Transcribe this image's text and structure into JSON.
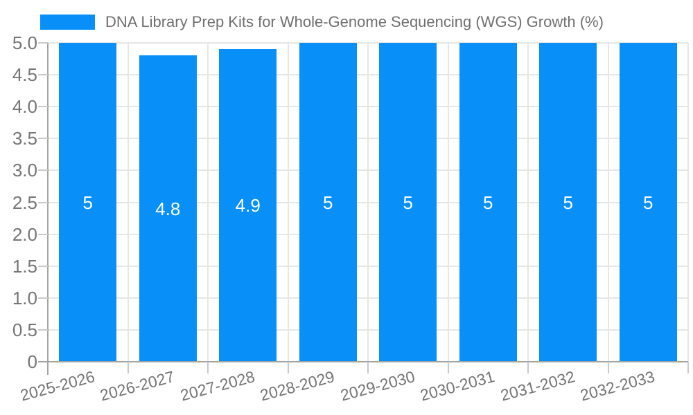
{
  "legend": {
    "label": "DNA Library Prep Kits for Whole-Genome Sequencing (WGS) Growth (%)"
  },
  "colors": {
    "bar": "#0890F8",
    "grid": "#e6e6e6",
    "axis": "#a3a3a3",
    "tick": "#c9c9c9",
    "tick_text": "#757575",
    "title_text": "#6f6f6f",
    "bar_label": "#ffffff",
    "background": "#ffffff"
  },
  "chart_data": {
    "type": "bar",
    "title": "DNA Library Prep Kits for Whole-Genome Sequencing (WGS) Growth (%)",
    "categories": [
      "2025-2026",
      "2026-2027",
      "2027-2028",
      "2028-2029",
      "2029-2030",
      "2030-2031",
      "2031-2032",
      "2032-2033"
    ],
    "values": [
      5,
      4.8,
      4.9,
      5,
      5,
      5,
      5,
      5
    ],
    "bar_labels": [
      "5",
      "4.8",
      "4.9",
      "5",
      "5",
      "5",
      "5",
      "5"
    ],
    "xlabel": "",
    "ylabel": "",
    "ylim": [
      0,
      5
    ],
    "ytick_step": 0.5,
    "ytick_labels": [
      "0",
      "0.5",
      "1.0",
      "1.5",
      "2.0",
      "2.5",
      "3.0",
      "3.5",
      "4.0",
      "4.5",
      "5.0"
    ],
    "grid": true,
    "legend_position": "top-left",
    "bar_label_position": "center-inside",
    "x_label_rotation_deg": -15
  }
}
